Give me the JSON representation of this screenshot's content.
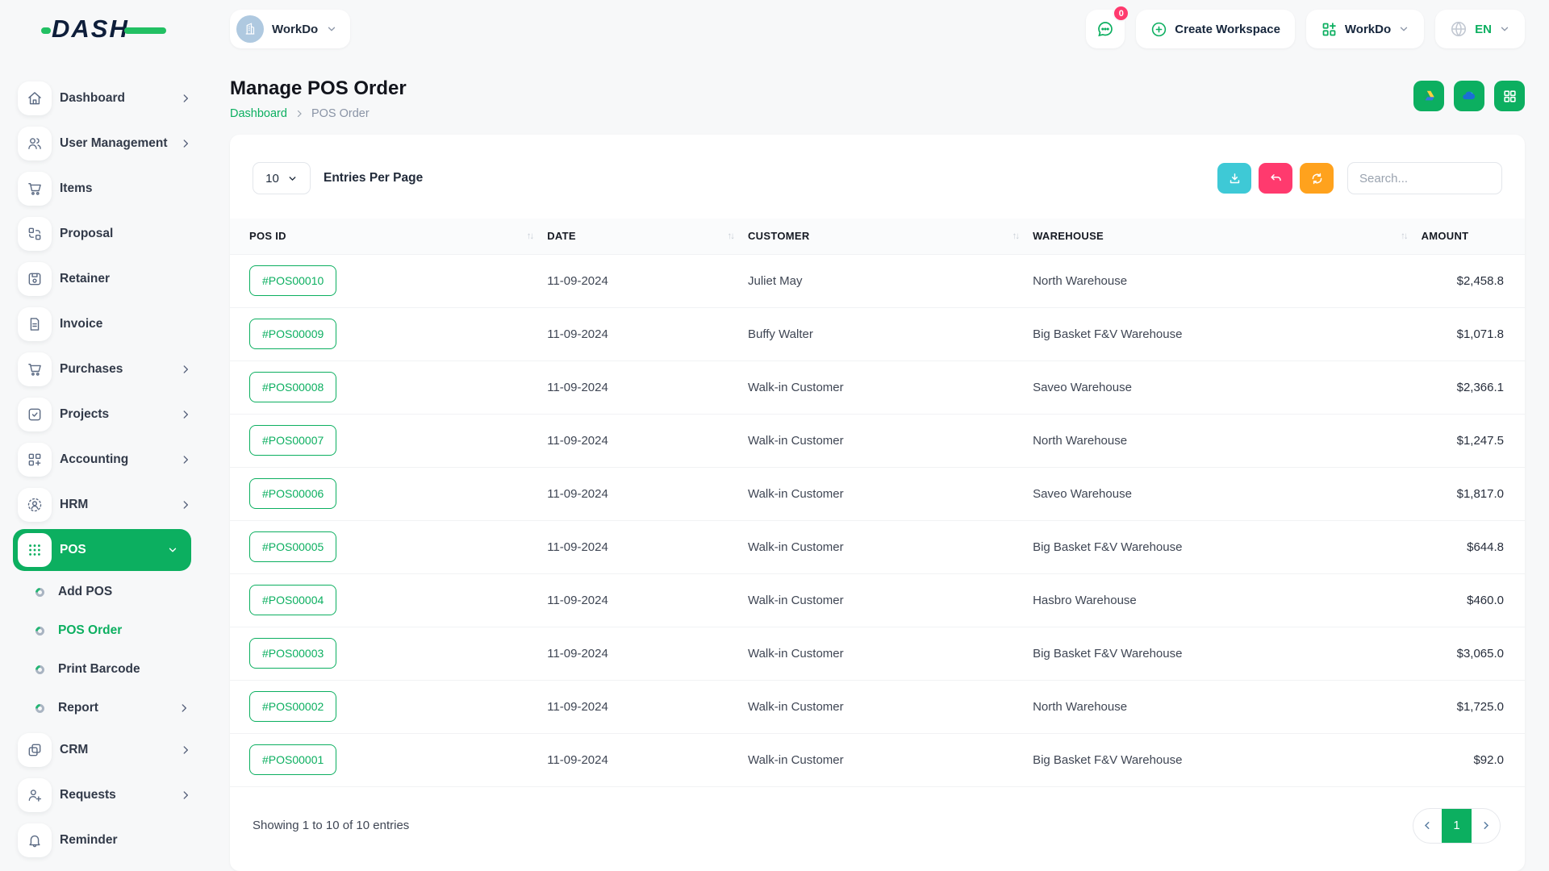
{
  "topbar": {
    "logo_text": "DASH",
    "workspace": {
      "label": "WorkDo"
    },
    "messages_badge": "0",
    "create_workspace_label": "Create Workspace",
    "workdo_menu_label": "WorkDo",
    "language": "EN"
  },
  "sidebar": {
    "items": [
      {
        "type": "item",
        "label": "Dashboard",
        "icon": "home-icon",
        "chevron": "right",
        "active": false
      },
      {
        "type": "item",
        "label": "User Management",
        "icon": "users-icon",
        "chevron": "right",
        "active": false
      },
      {
        "type": "item",
        "label": "Items",
        "icon": "cart-icon",
        "chevron": null,
        "active": false
      },
      {
        "type": "item",
        "label": "Proposal",
        "icon": "proposal-icon",
        "chevron": null,
        "active": false
      },
      {
        "type": "item",
        "label": "Retainer",
        "icon": "retainer-icon",
        "chevron": null,
        "active": false
      },
      {
        "type": "item",
        "label": "Invoice",
        "icon": "invoice-icon",
        "chevron": null,
        "active": false
      },
      {
        "type": "item",
        "label": "Purchases",
        "icon": "cart-icon",
        "chevron": "right",
        "active": false
      },
      {
        "type": "item",
        "label": "Projects",
        "icon": "check-square-icon",
        "chevron": "right",
        "active": false
      },
      {
        "type": "item",
        "label": "Accounting",
        "icon": "grid-plus-icon",
        "chevron": "right",
        "active": false
      },
      {
        "type": "item",
        "label": "HRM",
        "icon": "person-scan-icon",
        "chevron": "right",
        "active": false
      },
      {
        "type": "item",
        "label": "POS",
        "icon": "grid-dots-icon",
        "chevron": "down",
        "active": true
      },
      {
        "type": "sub",
        "label": "Add POS",
        "icon": "bullet-icon",
        "chevron": null,
        "active": false
      },
      {
        "type": "sub",
        "label": "POS Order",
        "icon": "bullet-icon",
        "chevron": null,
        "active": true
      },
      {
        "type": "sub",
        "label": "Print Barcode",
        "icon": "bullet-icon",
        "chevron": null,
        "active": false
      },
      {
        "type": "sub",
        "label": "Report",
        "icon": "bullet-icon",
        "chevron": "right",
        "active": false
      },
      {
        "type": "item",
        "label": "CRM",
        "icon": "copy-icon",
        "chevron": "right",
        "active": false
      },
      {
        "type": "item",
        "label": "Requests",
        "icon": "user-plus-icon",
        "chevron": "right",
        "active": false
      },
      {
        "type": "item",
        "label": "Reminder",
        "icon": "bell-icon",
        "chevron": null,
        "active": false
      }
    ]
  },
  "page": {
    "title": "Manage POS Order",
    "breadcrumb": {
      "link": "Dashboard",
      "current": "POS Order"
    },
    "header_buttons": [
      "google-drive",
      "onedrive",
      "grid"
    ]
  },
  "toolbar": {
    "entries_value": "10",
    "entries_label": "Entries Per Page",
    "search_placeholder": "Search..."
  },
  "table": {
    "columns": [
      {
        "label": "POS ID",
        "sortable": true,
        "align": "left"
      },
      {
        "label": "DATE",
        "sortable": true,
        "align": "left"
      },
      {
        "label": "CUSTOMER",
        "sortable": true,
        "align": "left"
      },
      {
        "label": "WAREHOUSE",
        "sortable": true,
        "align": "left"
      },
      {
        "label": "AMOUNT",
        "sortable": false,
        "align": "right"
      }
    ],
    "rows": [
      {
        "pos_id": "#POS00010",
        "date": "11-09-2024",
        "customer": "Juliet May",
        "warehouse": "North Warehouse",
        "amount": "$2,458.8"
      },
      {
        "pos_id": "#POS00009",
        "date": "11-09-2024",
        "customer": "Buffy Walter",
        "warehouse": "Big Basket F&V Warehouse",
        "amount": "$1,071.8"
      },
      {
        "pos_id": "#POS00008",
        "date": "11-09-2024",
        "customer": "Walk-in Customer",
        "warehouse": "Saveo Warehouse",
        "amount": "$2,366.1"
      },
      {
        "pos_id": "#POS00007",
        "date": "11-09-2024",
        "customer": "Walk-in Customer",
        "warehouse": "North Warehouse",
        "amount": "$1,247.5"
      },
      {
        "pos_id": "#POS00006",
        "date": "11-09-2024",
        "customer": "Walk-in Customer",
        "warehouse": "Saveo Warehouse",
        "amount": "$1,817.0"
      },
      {
        "pos_id": "#POS00005",
        "date": "11-09-2024",
        "customer": "Walk-in Customer",
        "warehouse": "Big Basket F&V Warehouse",
        "amount": "$644.8"
      },
      {
        "pos_id": "#POS00004",
        "date": "11-09-2024",
        "customer": "Walk-in Customer",
        "warehouse": "Hasbro Warehouse",
        "amount": "$460.0"
      },
      {
        "pos_id": "#POS00003",
        "date": "11-09-2024",
        "customer": "Walk-in Customer",
        "warehouse": "Big Basket F&V Warehouse",
        "amount": "$3,065.0"
      },
      {
        "pos_id": "#POS00002",
        "date": "11-09-2024",
        "customer": "Walk-in Customer",
        "warehouse": "North Warehouse",
        "amount": "$1,725.0"
      },
      {
        "pos_id": "#POS00001",
        "date": "11-09-2024",
        "customer": "Walk-in Customer",
        "warehouse": "Big Basket F&V Warehouse",
        "amount": "$92.0"
      }
    ],
    "footer_text": "Showing 1 to 10 of 10 entries",
    "pagination": {
      "current_page": "1"
    }
  },
  "colors": {
    "primary_green": "#0CAF60",
    "cyan": "#3EC9D6",
    "pink": "#FF3A6E",
    "orange": "#FFA21D",
    "navy": "#0E1E3A"
  }
}
